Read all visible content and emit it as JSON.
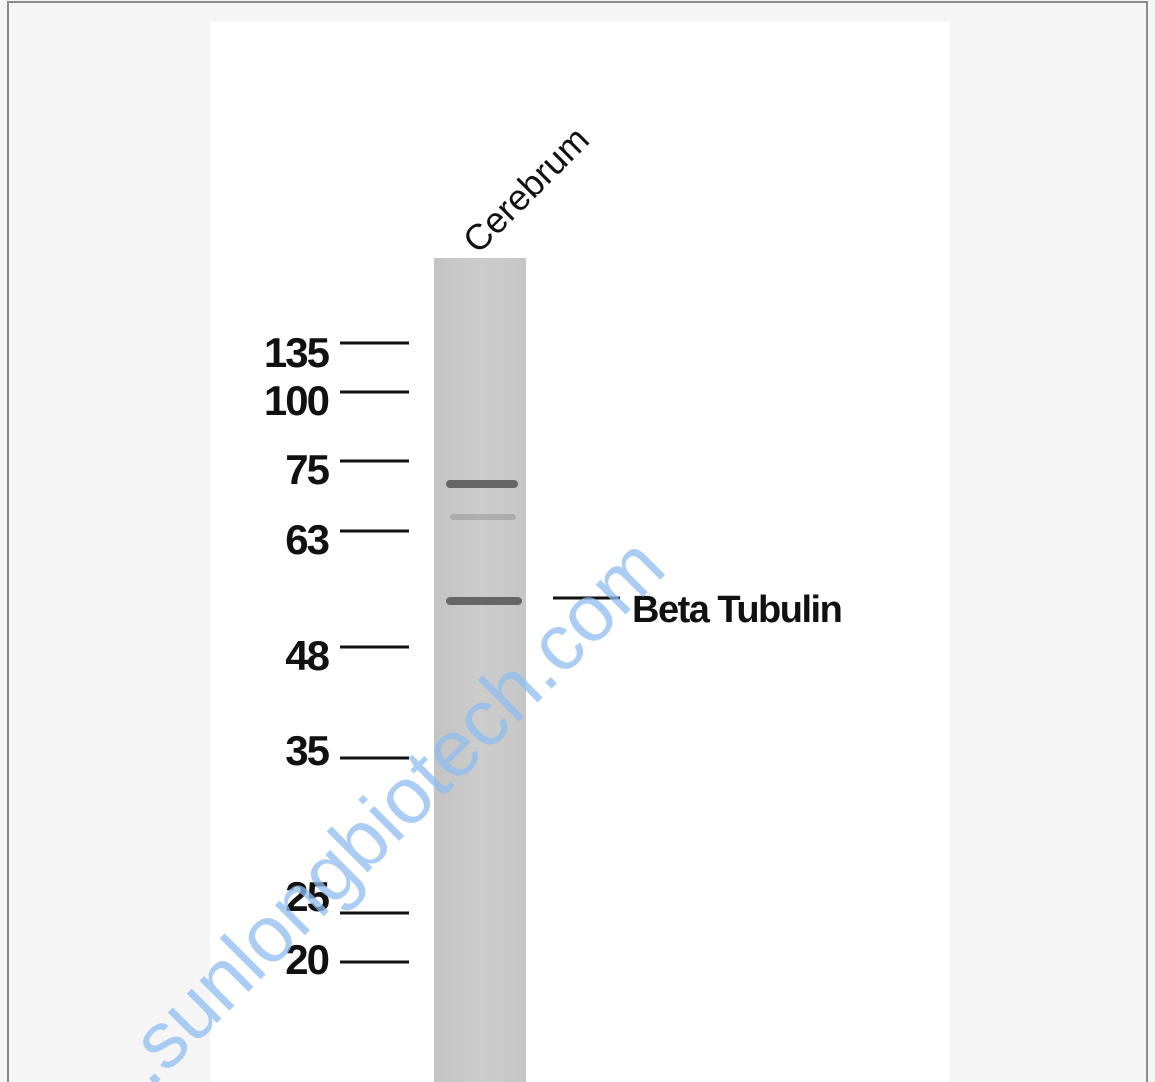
{
  "lane_label": "Cerebrum",
  "markers": [
    "135",
    "100",
    "75",
    "63",
    "48",
    "35",
    "25",
    "20"
  ],
  "target_label": "Beta Tubulin",
  "watermark": ".sunlongbiotech.com"
}
